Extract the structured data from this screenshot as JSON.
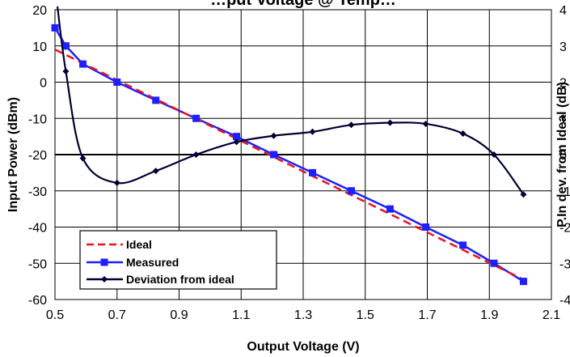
{
  "chart_data": {
    "type": "line",
    "title": "…put Voltage @ Temp…",
    "xlabel": "Output Voltage (V)",
    "ylabel": "Input Power (dBm)",
    "y2label": "P.In dev. from Ideal (dB)",
    "xlim": [
      0.5,
      2.1
    ],
    "ylim": [
      -60,
      20
    ],
    "y2lim": [
      -4,
      4
    ],
    "x_ticks": [
      "0.5",
      "0.7",
      "0.9",
      "1.1",
      "1.3",
      "1.5",
      "1.7",
      "1.9",
      "2.1"
    ],
    "y_ticks": [
      "20",
      "10",
      "0",
      "-10",
      "-20",
      "-30",
      "-40",
      "-50",
      "-60"
    ],
    "y2_ticks": [
      "4",
      "3",
      "2",
      "1",
      "0",
      "-1",
      "-2",
      "-3",
      "-4"
    ],
    "grid": true,
    "legend_position": "bottom-left",
    "series": [
      {
        "name": "Ideal",
        "axis": "left",
        "style": "dashed",
        "color": "#e8141c",
        "x": [
          0.5,
          2.01
        ],
        "y": [
          9.0,
          -54.5
        ]
      },
      {
        "name": "Measured",
        "axis": "left",
        "marker": "square",
        "color": "#1f1fff",
        "x": [
          0.5,
          0.535,
          0.59,
          0.7,
          0.825,
          0.955,
          1.085,
          1.205,
          1.33,
          1.455,
          1.58,
          1.695,
          1.815,
          1.915,
          2.01
        ],
        "y": [
          15,
          10,
          5,
          0,
          -5,
          -10,
          -15,
          -20,
          -25,
          -30,
          -35,
          -40,
          -45,
          -50,
          -55
        ]
      },
      {
        "name": "Deviation from ideal",
        "axis": "right",
        "marker": "diamond",
        "color": "#000033",
        "x": [
          0.535,
          0.59,
          0.7,
          0.825,
          0.955,
          1.085,
          1.205,
          1.33,
          1.455,
          1.58,
          1.695,
          1.815,
          1.915,
          2.01
        ],
        "y": [
          2.3,
          -0.1,
          -0.78,
          -0.45,
          0.0,
          0.35,
          0.52,
          0.63,
          0.82,
          0.88,
          0.85,
          0.58,
          0.0,
          -1.1
        ]
      }
    ]
  },
  "colors": {
    "grid": "#000000",
    "zero_line": "#000000",
    "background": "#ffffff"
  }
}
